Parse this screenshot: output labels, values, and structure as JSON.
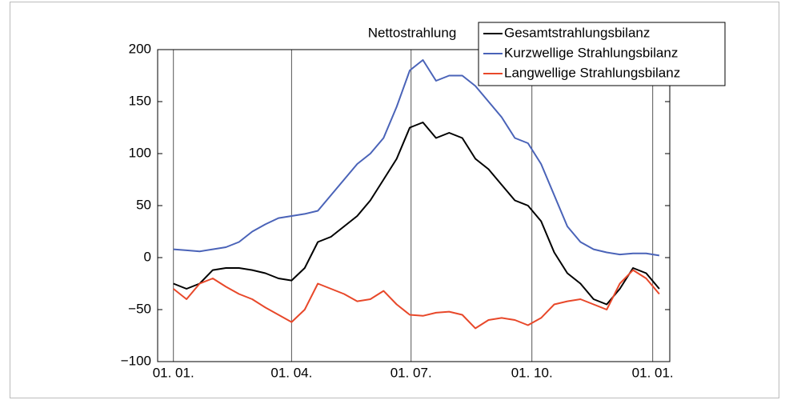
{
  "chart_data": {
    "type": "line",
    "title": "Nettostrahlung",
    "x": [
      0,
      10,
      20,
      30,
      40,
      50,
      60,
      70,
      80,
      90,
      100,
      110,
      120,
      130,
      140,
      150,
      160,
      170,
      180,
      190,
      200,
      210,
      220,
      230,
      240,
      250,
      260,
      270,
      280,
      290,
      300,
      310,
      320,
      330,
      340,
      350,
      360,
      370
    ],
    "series": [
      {
        "name": "Gesamtstrahlungsbilanz",
        "color": "#000000",
        "values": [
          -25,
          -30,
          -25,
          -12,
          -10,
          -10,
          -12,
          -15,
          -20,
          -22,
          -10,
          15,
          20,
          30,
          40,
          55,
          75,
          95,
          125,
          130,
          115,
          120,
          115,
          95,
          85,
          70,
          55,
          50,
          35,
          5,
          -15,
          -25,
          -40,
          -45,
          -30,
          -10,
          -15,
          -30
        ]
      },
      {
        "name": "Kurzwellige Strahlungsbilanz",
        "color": "#4a63b8",
        "values": [
          8,
          7,
          6,
          8,
          10,
          15,
          25,
          32,
          38,
          40,
          42,
          45,
          60,
          75,
          90,
          100,
          115,
          145,
          180,
          190,
          170,
          175,
          175,
          165,
          150,
          135,
          115,
          110,
          90,
          60,
          30,
          15,
          8,
          5,
          3,
          4,
          4,
          2
        ]
      },
      {
        "name": "Langwellige Strahlungsbilanz",
        "color": "#e8482a",
        "values": [
          -30,
          -40,
          -25,
          -20,
          -28,
          -35,
          -40,
          -48,
          -55,
          -62,
          -50,
          -25,
          -30,
          -35,
          -42,
          -40,
          -32,
          -45,
          -55,
          -56,
          -53,
          -52,
          -55,
          -68,
          -60,
          -58,
          -60,
          -65,
          -58,
          -45,
          -42,
          -40,
          -45,
          -50,
          -25,
          -12,
          -20,
          -35
        ]
      }
    ],
    "xlim": [
      -12,
      378
    ],
    "xticks": [
      {
        "value": 0,
        "label": "01. 01."
      },
      {
        "value": 90,
        "label": "01. 04."
      },
      {
        "value": 181,
        "label": "01. 07."
      },
      {
        "value": 273,
        "label": "01. 10."
      },
      {
        "value": 365,
        "label": "01. 01."
      }
    ],
    "ylim": [
      -100,
      200
    ],
    "yticks": [
      {
        "value": -100,
        "label": "−100"
      },
      {
        "value": -50,
        "label": "−50"
      },
      0,
      50,
      100,
      150,
      200
    ],
    "grid": "x",
    "legend": "top-right"
  }
}
